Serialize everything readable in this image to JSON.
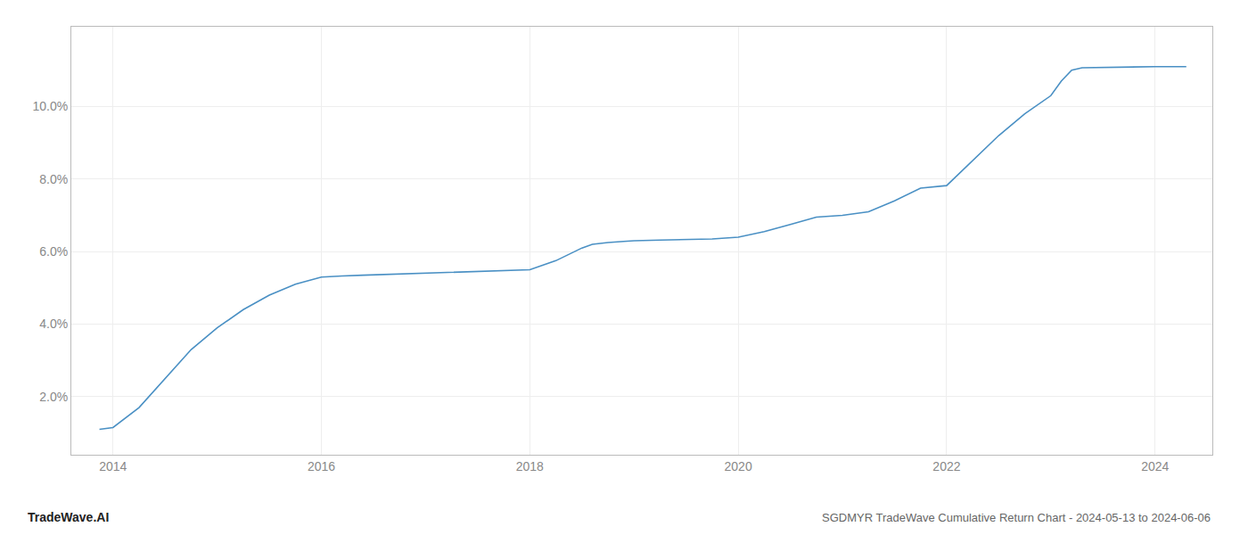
{
  "chart_data": {
    "type": "line",
    "title": "SGDMYR TradeWave Cumulative Return Chart - 2024-05-13 to 2024-06-06",
    "annotations": [
      "TradeWave.AI"
    ],
    "color": "#4a90c4",
    "x": [
      2013.87,
      2014.0,
      2014.25,
      2014.5,
      2014.75,
      2015.0,
      2015.25,
      2015.5,
      2015.75,
      2016.0,
      2016.1,
      2016.2,
      2016.4,
      2016.6,
      2016.8,
      2017.0,
      2017.25,
      2017.5,
      2017.75,
      2018.0,
      2018.25,
      2018.4,
      2018.5,
      2018.6,
      2018.75,
      2018.9,
      2019.0,
      2019.25,
      2019.5,
      2019.75,
      2020.0,
      2020.25,
      2020.5,
      2020.75,
      2021.0,
      2021.25,
      2021.5,
      2021.75,
      2022.0,
      2022.25,
      2022.5,
      2022.75,
      2023.0,
      2023.1,
      2023.2,
      2023.3,
      2023.5,
      2023.75,
      2024.0,
      2024.3
    ],
    "values": [
      1.1,
      1.15,
      1.7,
      2.5,
      3.3,
      3.9,
      4.4,
      4.8,
      5.1,
      5.3,
      5.32,
      5.33,
      5.35,
      5.37,
      5.38,
      5.4,
      5.42,
      5.45,
      5.47,
      5.5,
      5.75,
      5.95,
      6.1,
      6.2,
      6.25,
      6.28,
      6.3,
      6.32,
      6.33,
      6.35,
      6.4,
      6.55,
      6.75,
      6.95,
      7.0,
      7.1,
      7.4,
      7.75,
      7.82,
      8.5,
      9.2,
      9.8,
      10.3,
      10.7,
      11.0,
      11.07,
      11.08,
      11.09,
      11.1,
      11.1
    ],
    "xlim": [
      2013.6,
      2024.55
    ],
    "ylim": [
      0.4,
      12.2
    ],
    "xticks": [
      2014,
      2016,
      2018,
      2020,
      2022,
      2024
    ],
    "yticks": [
      {
        "value": 2.0,
        "label": "2.0%"
      },
      {
        "value": 4.0,
        "label": "4.0%"
      },
      {
        "value": 6.0,
        "label": "6.0%"
      },
      {
        "value": 8.0,
        "label": "8.0%"
      },
      {
        "value": 10.0,
        "label": "10.0%"
      }
    ],
    "grid": true
  }
}
